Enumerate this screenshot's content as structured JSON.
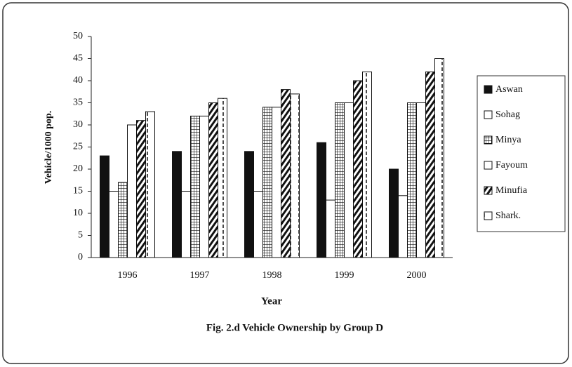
{
  "chart_data": {
    "type": "bar",
    "title": "Fig. 2.d Vehicle Ownership by Group D",
    "xlabel": "Year",
    "ylabel": "Vehicle/1000 pop.",
    "categories": [
      "1996",
      "1997",
      "1998",
      "1999",
      "2000"
    ],
    "series": [
      {
        "name": "Aswan",
        "color": "#111111",
        "pattern": "solid",
        "values": [
          23,
          24,
          24,
          26,
          20
        ]
      },
      {
        "name": "Sohag",
        "color": "#ffffff",
        "pattern": "none",
        "values": [
          15,
          15,
          15,
          13,
          14
        ]
      },
      {
        "name": "Minya",
        "color": "#111111",
        "pattern": "grid",
        "values": [
          17,
          32,
          34,
          35,
          35
        ]
      },
      {
        "name": "Fayoum",
        "color": "#ffffff",
        "pattern": "none",
        "values": [
          30,
          32,
          34,
          35,
          35
        ]
      },
      {
        "name": "Minufia",
        "color": "#111111",
        "pattern": "hatch",
        "values": [
          31,
          35,
          38,
          40,
          42
        ]
      },
      {
        "name": "Shark.",
        "color": "#111111",
        "pattern": "dashed",
        "values": [
          33,
          36,
          37,
          42,
          45
        ]
      }
    ],
    "ylim": [
      0,
      50
    ],
    "yticks": [
      0,
      5,
      10,
      15,
      20,
      25,
      30,
      35,
      40,
      45,
      50
    ],
    "legend": "right"
  }
}
